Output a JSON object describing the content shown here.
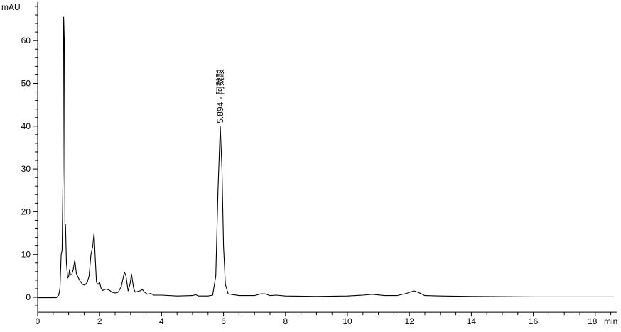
{
  "chart_data": {
    "type": "line",
    "ylabel": "mAU",
    "xunit": "min",
    "xlim": [
      0,
      18.7
    ],
    "ylim": [
      -3.5,
      69
    ],
    "x_ticks": [
      0,
      2,
      4,
      6,
      8,
      10,
      12,
      14,
      16,
      18
    ],
    "y_ticks": [
      0,
      10,
      20,
      30,
      40,
      50,
      60
    ],
    "grid": false,
    "line_color": "#000000",
    "annotations": [
      {
        "x": 5.894,
        "y": 40,
        "text": "5.894 - 阿魏酸"
      }
    ],
    "series": [
      {
        "points": [
          [
            0,
            -0.1
          ],
          [
            0.6,
            -0.1
          ],
          [
            0.68,
            0.5
          ],
          [
            0.72,
            2
          ],
          [
            0.76,
            10
          ],
          [
            0.79,
            11
          ],
          [
            0.82,
            30
          ],
          [
            0.84,
            65.5
          ],
          [
            0.86,
            60
          ],
          [
            0.88,
            17
          ],
          [
            0.9,
            17
          ],
          [
            0.93,
            8
          ],
          [
            0.97,
            4.5
          ],
          [
            1.0,
            4.8
          ],
          [
            1.03,
            6.5
          ],
          [
            1.06,
            5.2
          ],
          [
            1.1,
            5.3
          ],
          [
            1.15,
            6.5
          ],
          [
            1.2,
            8.7
          ],
          [
            1.25,
            5.5
          ],
          [
            1.35,
            4
          ],
          [
            1.45,
            3
          ],
          [
            1.52,
            2.8
          ],
          [
            1.6,
            3.5
          ],
          [
            1.66,
            5
          ],
          [
            1.72,
            10
          ],
          [
            1.78,
            12
          ],
          [
            1.82,
            15
          ],
          [
            1.86,
            9
          ],
          [
            1.9,
            3.5
          ],
          [
            1.95,
            3
          ],
          [
            2.0,
            3.5
          ],
          [
            2.05,
            2
          ],
          [
            2.1,
            1.6
          ],
          [
            2.2,
            1.9
          ],
          [
            2.3,
            1.7
          ],
          [
            2.4,
            1.2
          ],
          [
            2.5,
            1
          ],
          [
            2.6,
            1.2
          ],
          [
            2.7,
            2.5
          ],
          [
            2.8,
            5.9
          ],
          [
            2.85,
            5
          ],
          [
            2.92,
            1.5
          ],
          [
            2.98,
            3
          ],
          [
            3.03,
            5.4
          ],
          [
            3.1,
            2
          ],
          [
            3.15,
            1.2
          ],
          [
            3.3,
            1.5
          ],
          [
            3.38,
            1.8
          ],
          [
            3.45,
            1.2
          ],
          [
            3.55,
            0.7
          ],
          [
            3.65,
            0.9
          ],
          [
            3.75,
            0.5
          ],
          [
            4.0,
            0.5
          ],
          [
            4.5,
            0.3
          ],
          [
            5.0,
            0.4
          ],
          [
            5.1,
            0.6
          ],
          [
            5.2,
            0.3
          ],
          [
            5.5,
            0.3
          ],
          [
            5.65,
            0.5
          ],
          [
            5.75,
            5
          ],
          [
            5.82,
            25
          ],
          [
            5.894,
            40
          ],
          [
            5.95,
            30
          ],
          [
            6.0,
            12
          ],
          [
            6.06,
            3
          ],
          [
            6.15,
            0.8
          ],
          [
            6.5,
            0.4
          ],
          [
            7.0,
            0.4
          ],
          [
            7.2,
            0.8
          ],
          [
            7.35,
            0.8
          ],
          [
            7.5,
            0.4
          ],
          [
            7.7,
            0.5
          ],
          [
            8,
            0.3
          ],
          [
            9,
            0.2
          ],
          [
            10,
            0.3
          ],
          [
            10.5,
            0.5
          ],
          [
            10.8,
            0.7
          ],
          [
            11.2,
            0.4
          ],
          [
            11.6,
            0.4
          ],
          [
            11.9,
            0.9
          ],
          [
            12.15,
            1.5
          ],
          [
            12.3,
            1.1
          ],
          [
            12.5,
            0.4
          ],
          [
            13,
            0.3
          ],
          [
            14,
            0.2
          ],
          [
            16,
            0.1
          ],
          [
            18,
            0.1
          ],
          [
            18.6,
            0.1
          ]
        ]
      }
    ]
  }
}
